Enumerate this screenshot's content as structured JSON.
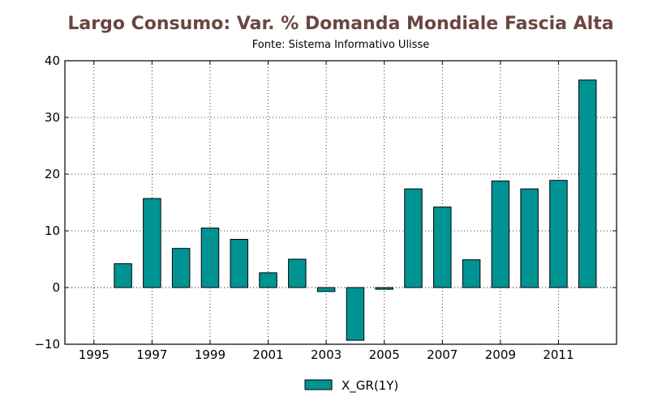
{
  "title": "Largo Consumo: Var. % Domanda Mondiale Fascia Alta",
  "subtitle": "Fonte: Sistema Informativo Ulisse",
  "colors": {
    "title": "#6b4641",
    "bar": "#009393",
    "bar_edge": "#000000"
  },
  "chart_data": {
    "type": "bar",
    "title": "Largo Consumo: Var. % Domanda Mondiale Fascia Alta",
    "subtitle": "Fonte: Sistema Informativo Ulisse",
    "xlabel": "",
    "ylabel": "",
    "categories": [
      1996,
      1997,
      1998,
      1999,
      2000,
      2001,
      2002,
      2003,
      2004,
      2005,
      2006,
      2007,
      2008,
      2009,
      2010,
      2011,
      2012
    ],
    "series": [
      {
        "name": "X_GR(1Y)",
        "values": [
          4.2,
          15.7,
          6.9,
          10.5,
          8.5,
          2.6,
          5.0,
          -0.7,
          -9.3,
          -0.3,
          17.4,
          14.2,
          4.9,
          18.8,
          17.4,
          18.9,
          36.6
        ]
      }
    ],
    "xlim": [
      1994,
      2013
    ],
    "ylim": [
      -10,
      40
    ],
    "x_ticks": [
      "1995",
      "1997",
      "1999",
      "2001",
      "2003",
      "2005",
      "2007",
      "2009",
      "2011"
    ],
    "y_ticks": [
      "−10",
      "0",
      "10",
      "20",
      "30",
      "40"
    ],
    "grid": true,
    "legend_position": "bottom-center"
  }
}
